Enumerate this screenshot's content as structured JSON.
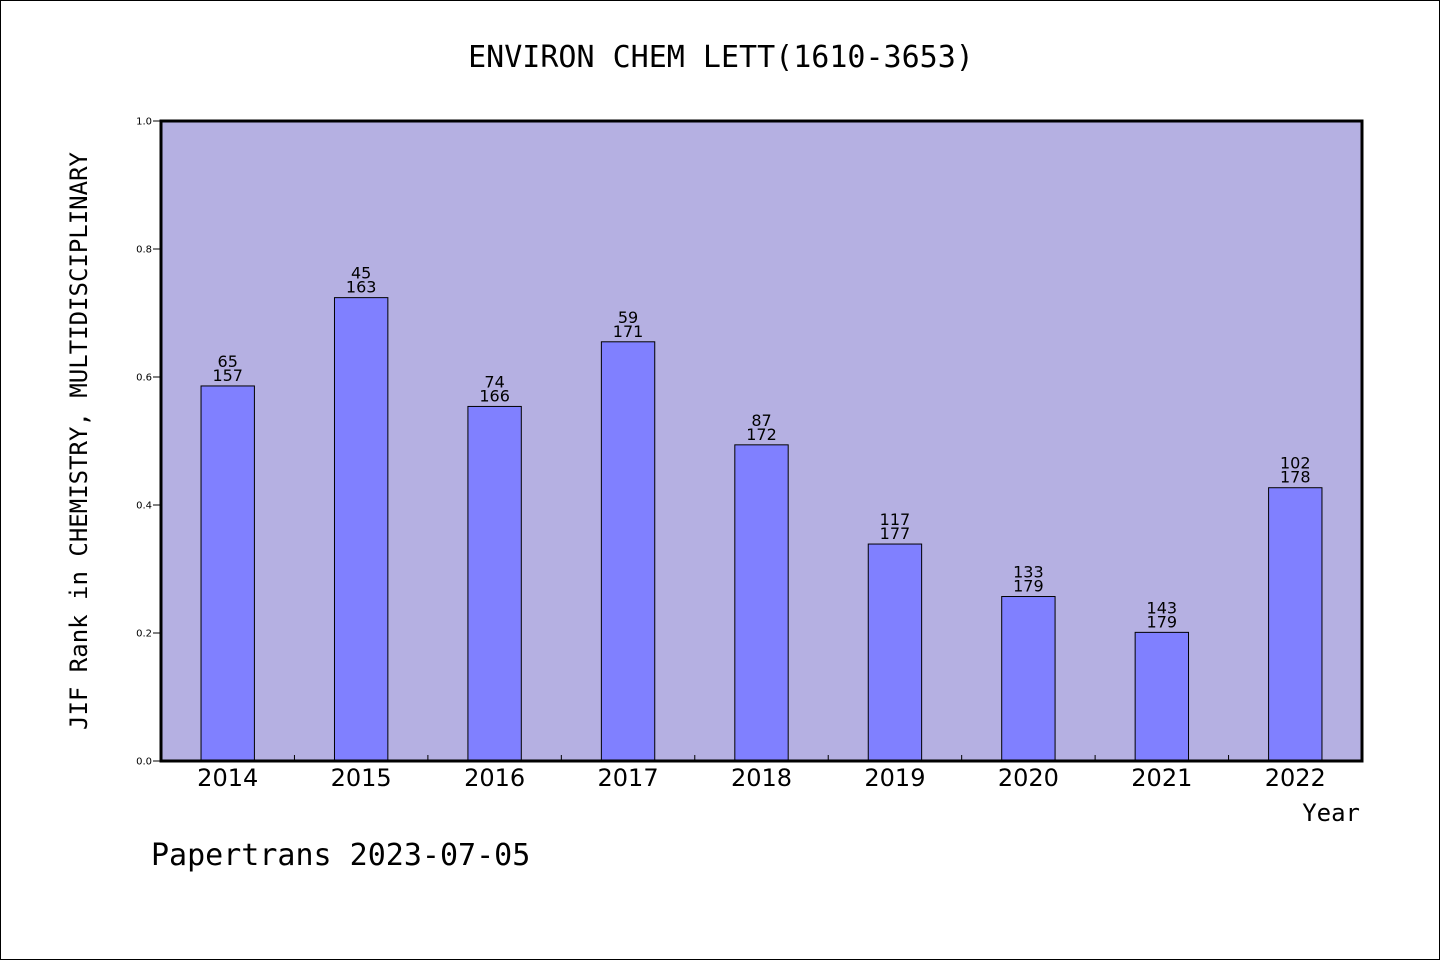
{
  "footer": "Papertrans 2023-07-05",
  "chart_data": {
    "type": "bar",
    "title": "ENVIRON CHEM LETT(1610-3653)",
    "xlabel": "Year",
    "ylabel": "JIF Rank in CHEMISTRY, MULTIDISCIPLINARY",
    "ylim": [
      0,
      1.0
    ],
    "yticks": [
      "0.0",
      "0.2",
      "0.4",
      "0.6",
      "0.8",
      "1.0"
    ],
    "grid": false,
    "colors": {
      "bar": "#8080ff",
      "plot_background": "#b5b0e2",
      "frame": "#000000"
    },
    "categories": [
      "2014",
      "2015",
      "2016",
      "2017",
      "2018",
      "2019",
      "2020",
      "2021",
      "2022"
    ],
    "values": [
      0.586,
      0.724,
      0.554,
      0.655,
      0.494,
      0.339,
      0.257,
      0.201,
      0.427
    ],
    "ranks": [
      "65",
      "45",
      "74",
      "59",
      "87",
      "117",
      "133",
      "143",
      "102"
    ],
    "totals": [
      "157",
      "163",
      "166",
      "171",
      "172",
      "177",
      "179",
      "179",
      "178"
    ]
  }
}
